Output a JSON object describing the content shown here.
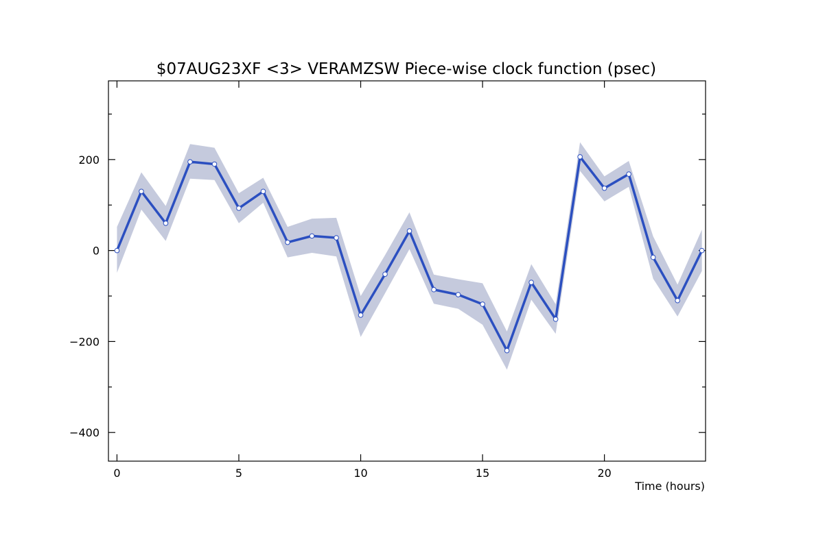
{
  "chart_data": {
    "type": "line",
    "title": "$07AUG23XF <3>  VERAMZSW  Piece-wise clock function (psec)",
    "xlabel": "Time (hours)",
    "ylabel": "",
    "xlim": [
      -0.35,
      24.15
    ],
    "ylim": [
      -463,
      373
    ],
    "x_ticks": [
      0,
      5,
      10,
      15,
      20
    ],
    "y_ticks": [
      -400,
      -200,
      0,
      200
    ],
    "grid": false,
    "colors": {
      "line": "#2b4fc0",
      "band": "#c5cadd",
      "marker_fill": "#ffffff",
      "marker_edge": "#2b4fc0",
      "frame": "#000000"
    },
    "series": [
      {
        "x": [
          0,
          1,
          2,
          3,
          4,
          5,
          6,
          7,
          8,
          9,
          10,
          11,
          12,
          13,
          14,
          15,
          16,
          17,
          18,
          19,
          20,
          21,
          22,
          23,
          24
        ],
        "values": [
          0,
          130,
          60,
          195,
          190,
          93,
          130,
          18,
          32,
          28,
          -142,
          -52,
          43,
          -86,
          -97,
          -118,
          -220,
          -70,
          -151,
          206,
          137,
          168,
          -15,
          -110,
          0
        ],
        "upper": [
          52,
          172,
          98,
          234,
          226,
          126,
          160,
          52,
          70,
          72,
          -100,
          -10,
          84,
          -53,
          -63,
          -72,
          -178,
          -30,
          -118,
          238,
          163,
          197,
          31,
          -75,
          46
        ],
        "lower": [
          -49,
          90,
          21,
          158,
          155,
          60,
          105,
          -15,
          -5,
          -13,
          -190,
          -94,
          3,
          -117,
          -128,
          -163,
          -262,
          -108,
          -183,
          175,
          108,
          140,
          -62,
          -145,
          -45
        ]
      }
    ]
  }
}
